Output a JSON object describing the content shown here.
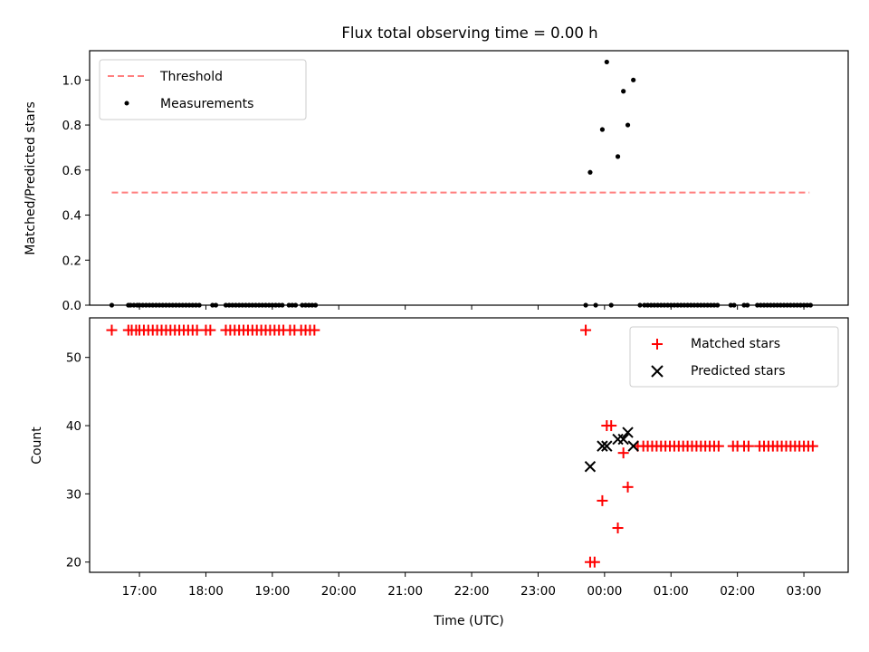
{
  "chart_data": [
    {
      "type": "scatter",
      "title": "Flux total observing time = 0.00 h",
      "xlabel": "",
      "ylabel": "Matched/Predicted stars",
      "xlim": [
        "16:15",
        "03:40"
      ],
      "ylim": [
        0,
        1.13
      ],
      "yticks": [
        0.0,
        0.2,
        0.4,
        0.6,
        0.8,
        1.0
      ],
      "ytick_labels": [
        "0.0",
        "0.2",
        "0.4",
        "0.6",
        "0.8",
        "1.0"
      ],
      "grid": false,
      "legend": "top-left",
      "series": [
        {
          "name": "Threshold",
          "kind": "line",
          "style": "dashed",
          "color": "#ff7f7f",
          "points": [
            [
              "16:35",
              0.5
            ],
            [
              "03:05",
              0.5
            ]
          ]
        },
        {
          "name": "Measurements",
          "kind": "scatter",
          "marker": "dot",
          "color": "#000000",
          "points": [
            [
              "16:35",
              0
            ],
            [
              "16:50",
              0
            ],
            [
              "16:52",
              0
            ],
            [
              "16:55",
              0
            ],
            [
              "16:58",
              0
            ],
            [
              "17:00",
              0
            ],
            [
              "17:03",
              0
            ],
            [
              "17:06",
              0
            ],
            [
              "17:09",
              0
            ],
            [
              "17:12",
              0
            ],
            [
              "17:15",
              0
            ],
            [
              "17:18",
              0
            ],
            [
              "17:21",
              0
            ],
            [
              "17:24",
              0
            ],
            [
              "17:27",
              0
            ],
            [
              "17:30",
              0
            ],
            [
              "17:33",
              0
            ],
            [
              "17:36",
              0
            ],
            [
              "17:39",
              0
            ],
            [
              "17:42",
              0
            ],
            [
              "17:45",
              0
            ],
            [
              "17:48",
              0
            ],
            [
              "17:51",
              0
            ],
            [
              "17:54",
              0
            ],
            [
              "18:06",
              0
            ],
            [
              "18:09",
              0
            ],
            [
              "18:18",
              0
            ],
            [
              "18:21",
              0
            ],
            [
              "18:24",
              0
            ],
            [
              "18:27",
              0
            ],
            [
              "18:30",
              0
            ],
            [
              "18:33",
              0
            ],
            [
              "18:36",
              0
            ],
            [
              "18:39",
              0
            ],
            [
              "18:42",
              0
            ],
            [
              "18:45",
              0
            ],
            [
              "18:48",
              0
            ],
            [
              "18:51",
              0
            ],
            [
              "18:54",
              0
            ],
            [
              "18:57",
              0
            ],
            [
              "19:00",
              0
            ],
            [
              "19:03",
              0
            ],
            [
              "19:06",
              0
            ],
            [
              "19:09",
              0
            ],
            [
              "19:15",
              0
            ],
            [
              "19:18",
              0
            ],
            [
              "19:21",
              0
            ],
            [
              "19:27",
              0
            ],
            [
              "19:30",
              0
            ],
            [
              "19:33",
              0
            ],
            [
              "19:36",
              0
            ],
            [
              "19:39",
              0
            ],
            [
              "23:43",
              0
            ],
            [
              "23:52",
              0
            ],
            [
              "23:47",
              0.59
            ],
            [
              "23:58",
              0.78
            ],
            [
              "00:02",
              1.08
            ],
            [
              "00:06",
              0.0
            ],
            [
              "00:12",
              0.66
            ],
            [
              "00:17",
              0.95
            ],
            [
              "00:21",
              0.8
            ],
            [
              "00:26",
              1.0
            ],
            [
              "00:32",
              0
            ],
            [
              "00:36",
              0
            ],
            [
              "00:39",
              0
            ],
            [
              "00:42",
              0
            ],
            [
              "00:45",
              0
            ],
            [
              "00:48",
              0
            ],
            [
              "00:51",
              0
            ],
            [
              "00:54",
              0
            ],
            [
              "00:57",
              0
            ],
            [
              "01:00",
              0
            ],
            [
              "01:03",
              0
            ],
            [
              "01:06",
              0
            ],
            [
              "01:09",
              0
            ],
            [
              "01:12",
              0
            ],
            [
              "01:15",
              0
            ],
            [
              "01:18",
              0
            ],
            [
              "01:21",
              0
            ],
            [
              "01:24",
              0
            ],
            [
              "01:27",
              0
            ],
            [
              "01:30",
              0
            ],
            [
              "01:33",
              0
            ],
            [
              "01:36",
              0
            ],
            [
              "01:39",
              0
            ],
            [
              "01:42",
              0
            ],
            [
              "01:54",
              0
            ],
            [
              "01:57",
              0
            ],
            [
              "02:06",
              0
            ],
            [
              "02:09",
              0
            ],
            [
              "02:18",
              0
            ],
            [
              "02:21",
              0
            ],
            [
              "02:24",
              0
            ],
            [
              "02:27",
              0
            ],
            [
              "02:30",
              0
            ],
            [
              "02:33",
              0
            ],
            [
              "02:36",
              0
            ],
            [
              "02:39",
              0
            ],
            [
              "02:42",
              0
            ],
            [
              "02:45",
              0
            ],
            [
              "02:48",
              0
            ],
            [
              "02:51",
              0
            ],
            [
              "02:54",
              0
            ],
            [
              "02:57",
              0
            ],
            [
              "03:00",
              0
            ],
            [
              "03:03",
              0
            ],
            [
              "03:06",
              0
            ]
          ]
        }
      ]
    },
    {
      "type": "scatter",
      "title": "",
      "xlabel": "Time (UTC)",
      "ylabel": "Count",
      "xlim": [
        "16:15",
        "03:40"
      ],
      "xticks": [
        "17:00",
        "18:00",
        "19:00",
        "20:00",
        "21:00",
        "22:00",
        "23:00",
        "00:00",
        "01:00",
        "02:00",
        "03:00"
      ],
      "ylim": [
        18.5,
        55.8
      ],
      "yticks": [
        20,
        30,
        40,
        50
      ],
      "ytick_labels": [
        "20",
        "30",
        "40",
        "50"
      ],
      "grid": false,
      "legend": "top-right",
      "series": [
        {
          "name": "Matched stars",
          "kind": "scatter",
          "marker": "plus",
          "color": "#ff0000",
          "points": [
            [
              "16:35",
              54
            ],
            [
              "16:50",
              54
            ],
            [
              "16:53",
              54
            ],
            [
              "16:57",
              54
            ],
            [
              "17:00",
              54
            ],
            [
              "17:04",
              54
            ],
            [
              "17:08",
              54
            ],
            [
              "17:12",
              54
            ],
            [
              "17:16",
              54
            ],
            [
              "17:20",
              54
            ],
            [
              "17:24",
              54
            ],
            [
              "17:28",
              54
            ],
            [
              "17:32",
              54
            ],
            [
              "17:36",
              54
            ],
            [
              "17:40",
              54
            ],
            [
              "17:44",
              54
            ],
            [
              "17:48",
              54
            ],
            [
              "17:52",
              54
            ],
            [
              "18:00",
              54
            ],
            [
              "18:04",
              54
            ],
            [
              "18:18",
              54
            ],
            [
              "18:22",
              54
            ],
            [
              "18:26",
              54
            ],
            [
              "18:30",
              54
            ],
            [
              "18:34",
              54
            ],
            [
              "18:38",
              54
            ],
            [
              "18:42",
              54
            ],
            [
              "18:46",
              54
            ],
            [
              "18:50",
              54
            ],
            [
              "18:54",
              54
            ],
            [
              "18:58",
              54
            ],
            [
              "19:02",
              54
            ],
            [
              "19:06",
              54
            ],
            [
              "19:10",
              54
            ],
            [
              "19:16",
              54
            ],
            [
              "19:20",
              54
            ],
            [
              "19:26",
              54
            ],
            [
              "19:30",
              54
            ],
            [
              "19:34",
              54
            ],
            [
              "19:38",
              54
            ],
            [
              "23:43",
              54
            ],
            [
              "23:47",
              20
            ],
            [
              "23:51",
              20
            ],
            [
              "23:58",
              29
            ],
            [
              "00:02",
              40
            ],
            [
              "00:06",
              40
            ],
            [
              "00:12",
              25
            ],
            [
              "00:17",
              36
            ],
            [
              "00:21",
              31
            ],
            [
              "00:30",
              37
            ],
            [
              "00:35",
              37
            ],
            [
              "00:39",
              37
            ],
            [
              "00:43",
              37
            ],
            [
              "00:47",
              37
            ],
            [
              "00:51",
              37
            ],
            [
              "00:55",
              37
            ],
            [
              "00:59",
              37
            ],
            [
              "01:03",
              37
            ],
            [
              "01:07",
              37
            ],
            [
              "01:11",
              37
            ],
            [
              "01:15",
              37
            ],
            [
              "01:19",
              37
            ],
            [
              "01:23",
              37
            ],
            [
              "01:27",
              37
            ],
            [
              "01:31",
              37
            ],
            [
              "01:35",
              37
            ],
            [
              "01:39",
              37
            ],
            [
              "01:43",
              37
            ],
            [
              "01:56",
              37
            ],
            [
              "02:00",
              37
            ],
            [
              "02:06",
              37
            ],
            [
              "02:10",
              37
            ],
            [
              "02:20",
              37
            ],
            [
              "02:24",
              37
            ],
            [
              "02:28",
              37
            ],
            [
              "02:32",
              37
            ],
            [
              "02:36",
              37
            ],
            [
              "02:40",
              37
            ],
            [
              "02:44",
              37
            ],
            [
              "02:48",
              37
            ],
            [
              "02:52",
              37
            ],
            [
              "02:56",
              37
            ],
            [
              "03:00",
              37
            ],
            [
              "03:04",
              37
            ],
            [
              "03:08",
              37
            ]
          ]
        },
        {
          "name": "Predicted stars",
          "kind": "scatter",
          "marker": "x",
          "color": "#000000",
          "points": [
            [
              "23:47",
              34
            ],
            [
              "23:58",
              37
            ],
            [
              "00:02",
              37
            ],
            [
              "00:12",
              38
            ],
            [
              "00:17",
              38
            ],
            [
              "00:21",
              39
            ],
            [
              "00:26",
              37
            ]
          ]
        }
      ]
    }
  ]
}
